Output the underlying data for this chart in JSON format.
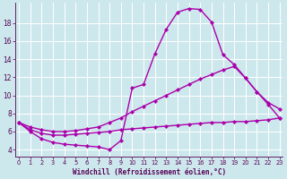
{
  "bg": "#cde8ec",
  "grid_color": "#b8d8dc",
  "line_color": "#aa00aa",
  "xlabel": "Windchill (Refroidissement éolien,°C)",
  "xlabel_color": "#550055",
  "tick_color": "#550055",
  "ylim": [
    3.2,
    20.2
  ],
  "xlim": [
    -0.3,
    23.3
  ],
  "yticks": [
    4,
    6,
    8,
    10,
    12,
    14,
    16,
    18
  ],
  "xticks": [
    0,
    1,
    2,
    3,
    4,
    5,
    6,
    7,
    8,
    9,
    10,
    11,
    12,
    13,
    14,
    15,
    16,
    17,
    18,
    19,
    20,
    21,
    22,
    23
  ],
  "curve_main_x": [
    0,
    1,
    2,
    3,
    4,
    5,
    6,
    7,
    8,
    9,
    10,
    11,
    12,
    13,
    14,
    15,
    16,
    17,
    18,
    19,
    20,
    21,
    22,
    23
  ],
  "curve_main_y": [
    7.0,
    6.0,
    5.2,
    4.8,
    4.6,
    4.5,
    4.4,
    4.3,
    4.0,
    5.0,
    10.8,
    11.2,
    14.6,
    17.3,
    19.2,
    19.6,
    19.5,
    18.1,
    14.5,
    13.4,
    11.9,
    10.4,
    9.0,
    7.5
  ],
  "curve_mid_x": [
    0,
    1,
    2,
    3,
    4,
    5,
    6,
    7,
    8,
    9,
    10,
    11,
    12,
    13,
    14,
    15,
    16,
    17,
    18,
    19,
    20,
    21,
    22,
    23
  ],
  "curve_mid_y": [
    7.0,
    6.5,
    6.2,
    6.0,
    6.0,
    6.1,
    6.3,
    6.5,
    7.0,
    7.5,
    8.2,
    8.8,
    9.4,
    10.0,
    10.6,
    11.2,
    11.8,
    12.3,
    12.8,
    13.2,
    11.9,
    10.4,
    9.2,
    8.5
  ],
  "curve_flat_x": [
    0,
    1,
    2,
    3,
    4,
    5,
    6,
    7,
    8,
    9,
    10,
    11,
    12,
    13,
    14,
    15,
    16,
    17,
    18,
    19,
    20,
    21,
    22,
    23
  ],
  "curve_flat_y": [
    7.0,
    6.2,
    5.8,
    5.6,
    5.6,
    5.7,
    5.8,
    5.9,
    6.0,
    6.2,
    6.3,
    6.4,
    6.5,
    6.6,
    6.7,
    6.8,
    6.9,
    7.0,
    7.0,
    7.1,
    7.1,
    7.2,
    7.3,
    7.5
  ]
}
